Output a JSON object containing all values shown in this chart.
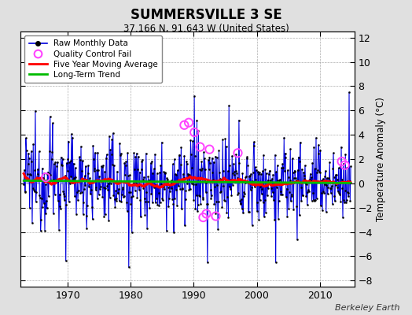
{
  "title": "SUMMERSVILLE 3 SE",
  "subtitle": "37.166 N, 91.643 W (United States)",
  "ylabel": "Temperature Anomaly (°C)",
  "credit": "Berkeley Earth",
  "ylim": [
    -8.5,
    12.5
  ],
  "yticks": [
    -8,
    -6,
    -4,
    -2,
    0,
    2,
    4,
    6,
    8,
    10,
    12
  ],
  "xlim": [
    1962.5,
    2015.5
  ],
  "xticks": [
    1970,
    1980,
    1990,
    2000,
    2010
  ],
  "year_start": 1963,
  "year_end": 2015,
  "bg_color": "#e0e0e0",
  "plot_bg_color": "#ffffff",
  "raw_line_color": "#0000dd",
  "raw_fill_color": "#8888ff",
  "raw_dot_color": "#000000",
  "ma_color": "#ff0000",
  "trend_color": "#00bb00",
  "qc_color": "#ff44ff",
  "seed": 12345
}
